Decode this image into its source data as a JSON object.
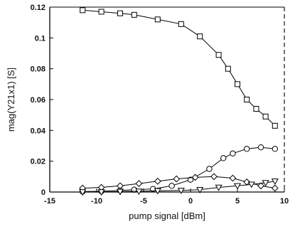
{
  "chart_data": {
    "type": "line",
    "xlabel": "pump signal [dBm]",
    "ylabel": "mag(Y21x1) [S]",
    "xlim": [
      -15,
      10
    ],
    "ylim": [
      0,
      0.12
    ],
    "xticks": [
      -15,
      -10,
      -5,
      0,
      5,
      10
    ],
    "yticks": [
      0,
      0.02,
      0.04,
      0.06,
      0.08,
      0.1,
      0.12
    ],
    "xtick_labels": [
      "-15",
      "-10",
      "-5",
      "0",
      "5",
      "10"
    ],
    "ytick_labels": [
      "0",
      "0.02",
      "0.04",
      "0.06",
      "0.08",
      "0.1",
      "0.12"
    ],
    "grid": false,
    "legend": "none",
    "series": [
      {
        "marker": "square",
        "x": [
          -11.5,
          -9.5,
          -7.5,
          -6,
          -3.5,
          -1,
          1,
          3,
          4,
          5,
          6,
          7,
          8,
          9
        ],
        "y": [
          0.118,
          0.117,
          0.116,
          0.115,
          0.112,
          0.109,
          0.101,
          0.089,
          0.08,
          0.07,
          0.06,
          0.054,
          0.049,
          0.043
        ]
      },
      {
        "marker": "circle",
        "x": [
          -11.5,
          -9.5,
          -7.5,
          -6,
          -4,
          -2,
          0,
          2,
          3.5,
          4.5,
          6,
          7.5,
          9
        ],
        "y": [
          0.0003,
          0.0005,
          0.001,
          0.0015,
          0.002,
          0.004,
          0.008,
          0.015,
          0.022,
          0.025,
          0.028,
          0.029,
          0.028
        ]
      },
      {
        "marker": "diamond",
        "x": [
          -11.5,
          -9.5,
          -7.5,
          -5.5,
          -3.5,
          -1.5,
          0.5,
          2.5,
          4.5,
          6,
          7.5,
          9
        ],
        "y": [
          0.0025,
          0.003,
          0.004,
          0.0055,
          0.007,
          0.0085,
          0.0095,
          0.01,
          0.009,
          0.0065,
          0.004,
          0.0025
        ]
      },
      {
        "marker": "triangle-down",
        "x": [
          -11.5,
          -9.5,
          -7.5,
          -5.5,
          -3.5,
          -1,
          1,
          3,
          5,
          6.5,
          8,
          9
        ],
        "y": [
          0.0,
          0.0,
          0.0003,
          0.0005,
          0.0008,
          0.001,
          0.0015,
          0.003,
          0.004,
          0.005,
          0.006,
          0.007
        ]
      }
    ]
  }
}
